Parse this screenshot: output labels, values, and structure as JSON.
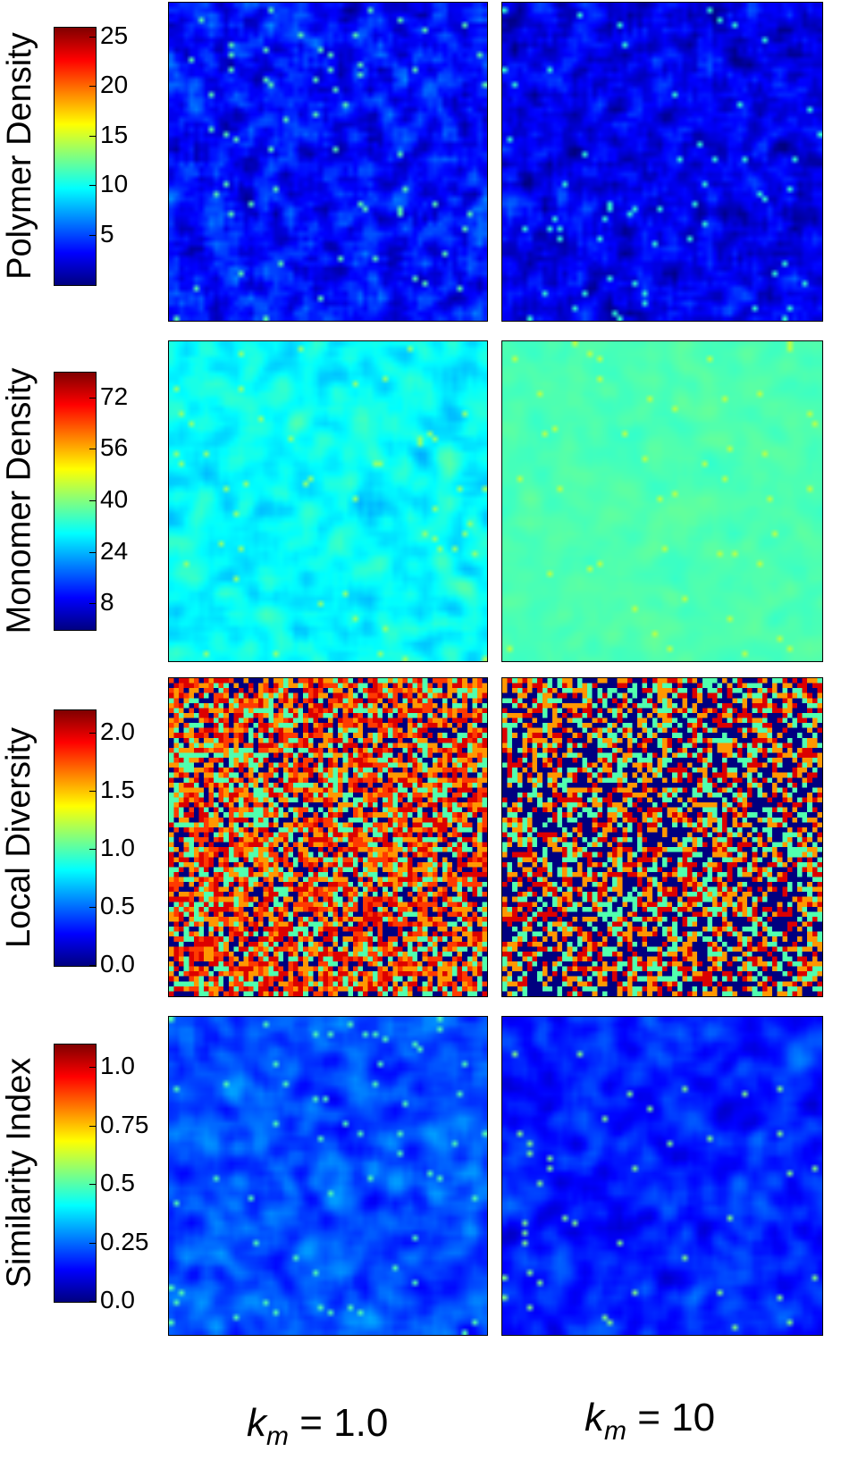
{
  "chart_data": [
    {
      "type": "heatmap",
      "ylabel": "Polymer Density",
      "colorbar": {
        "ticks": [
          5,
          10,
          15,
          20,
          25
        ],
        "range": [
          0,
          26
        ],
        "colormap": "jet"
      },
      "panels": [
        {
          "column": "k_m = 1.0",
          "mean": 3.5,
          "spread": 2.2,
          "speck_level": 12
        },
        {
          "column": "k_m = 10",
          "mean": 2.8,
          "spread": 2.0,
          "speck_level": 11
        }
      ]
    },
    {
      "type": "heatmap",
      "ylabel": "Monomer Density",
      "colorbar": {
        "ticks": [
          8,
          24,
          40,
          56,
          72
        ],
        "range": [
          0,
          80
        ],
        "colormap": "jet"
      },
      "panels": [
        {
          "column": "k_m = 1.0",
          "mean": 30,
          "spread": 6,
          "speck_level": 42
        },
        {
          "column": "k_m = 10",
          "mean": 36,
          "spread": 2,
          "speck_level": 45
        }
      ]
    },
    {
      "type": "heatmap",
      "ylabel": "Local Diversity",
      "colorbar": {
        "ticks": [
          "0.0",
          "0.5",
          "1.0",
          "1.5",
          "2.0"
        ],
        "range": [
          0,
          2.2
        ],
        "colormap": "jet"
      },
      "panels": [
        {
          "column": "k_m = 1.0",
          "levels": [
            0.0,
            1.0,
            1.6,
            1.8,
            2.0
          ]
        },
        {
          "column": "k_m = 10",
          "levels": [
            0.0,
            0.0,
            1.0,
            1.6,
            2.0
          ]
        }
      ]
    },
    {
      "type": "heatmap",
      "ylabel": "Similarity Index",
      "colorbar": {
        "ticks": [
          "0.0",
          "0.25",
          "0.5",
          "0.75",
          "1.0"
        ],
        "range": [
          0,
          1.1
        ],
        "colormap": "jet"
      },
      "panels": [
        {
          "column": "k_m = 1.0",
          "mean": 0.22,
          "spread": 0.1,
          "speck_level": 0.5
        },
        {
          "column": "k_m = 10",
          "mean": 0.17,
          "spread": 0.09,
          "speck_level": 0.55
        }
      ]
    }
  ],
  "columns": {
    "left": {
      "symbol": "k",
      "subscript": "m",
      "value": "= 1.0"
    },
    "right": {
      "symbol": "k",
      "subscript": "m",
      "value": "= 10"
    }
  }
}
